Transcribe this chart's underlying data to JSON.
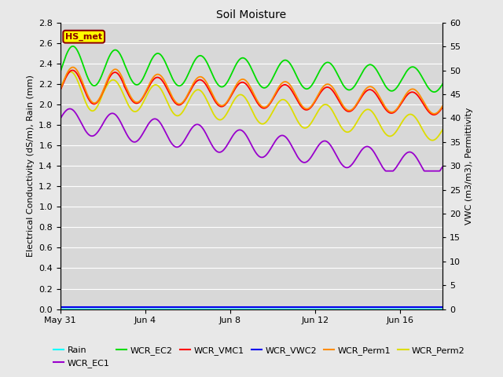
{
  "title": "Soil Moisture",
  "ylabel_left": "Electrical Conductivity (dS/m), Rain (mm)",
  "ylabel_right": "VWC (m3/m3), Permittivity",
  "ylim_left": [
    0.0,
    2.8
  ],
  "ylim_right": [
    0,
    60
  ],
  "yticks_left": [
    0.0,
    0.2,
    0.4,
    0.6,
    0.8,
    1.0,
    1.2,
    1.4,
    1.6,
    1.8,
    2.0,
    2.2,
    2.4,
    2.6,
    2.8
  ],
  "yticks_right": [
    0,
    5,
    10,
    15,
    20,
    25,
    30,
    35,
    40,
    45,
    50,
    55,
    60
  ],
  "xlim": [
    0,
    18
  ],
  "xtick_labels": [
    "May 31",
    "Jun 4",
    "Jun 8",
    "Jun 12",
    "Jun 16"
  ],
  "xtick_positions": [
    0,
    4,
    8,
    12,
    16
  ],
  "annotation_text": "HS_met",
  "annotation_color": "#8B0000",
  "annotation_bg": "#FFFF00",
  "bg_color": "#E8E8E8",
  "plot_bg_color": "#D8D8D8",
  "grid_color": "#FFFFFF",
  "legend_entries": [
    {
      "label": "Rain",
      "color": "#00FFFF"
    },
    {
      "label": "WCR_EC1",
      "color": "#9900CC"
    },
    {
      "label": "WCR_EC2",
      "color": "#00DD00"
    },
    {
      "label": "WCR_VMC1",
      "color": "#FF0000"
    },
    {
      "label": "WCR_VWC2",
      "color": "#0000EE"
    },
    {
      "label": "WCR_Perm1",
      "color": "#FF8C00"
    },
    {
      "label": "WCR_Perm2",
      "color": "#DDDD00"
    }
  ],
  "title_fontsize": 10,
  "axis_fontsize": 8,
  "tick_fontsize": 8
}
